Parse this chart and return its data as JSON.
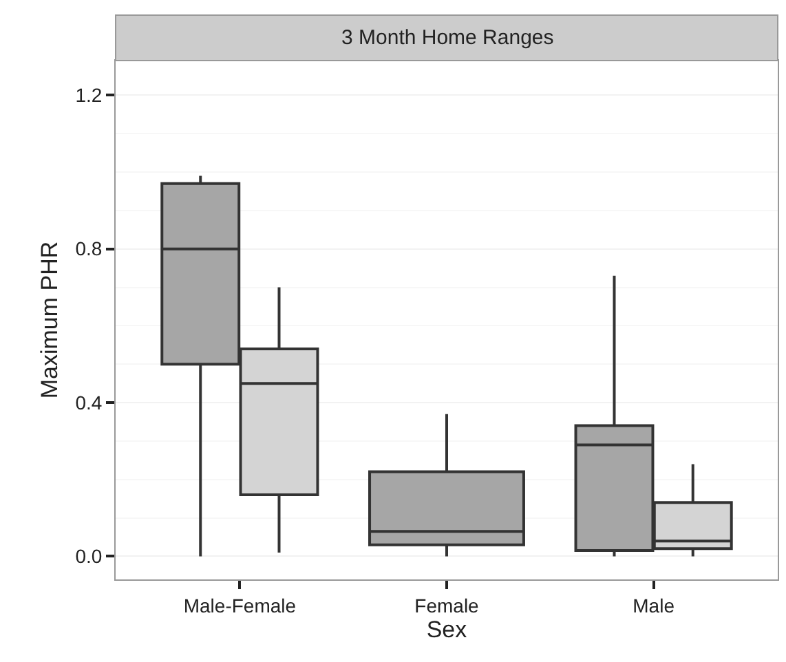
{
  "chart_data": {
    "type": "box",
    "title": "3 Month Home Ranges",
    "xlabel": "Sex",
    "ylabel": "Maximum PHR",
    "categories": [
      "Male-Female",
      "Female",
      "Male"
    ],
    "series": [
      {
        "color": "#a6a6a6",
        "boxes": [
          {
            "low": 0.0,
            "q1": 0.5,
            "median": 0.8,
            "q3": 0.97,
            "high": 0.99
          },
          {
            "low": 0.0,
            "q1": 0.03,
            "median": 0.065,
            "q3": 0.22,
            "high": 0.37
          },
          {
            "low": 0.0,
            "q1": 0.015,
            "median": 0.29,
            "q3": 0.34,
            "high": 0.73
          }
        ]
      },
      {
        "color": "#d4d4d4",
        "boxes": [
          {
            "low": 0.01,
            "q1": 0.16,
            "median": 0.45,
            "q3": 0.54,
            "high": 0.7
          },
          null,
          {
            "low": 0.0,
            "q1": 0.02,
            "median": 0.04,
            "q3": 0.14,
            "high": 0.24
          }
        ]
      }
    ],
    "ylim": [
      -0.06,
      1.29
    ],
    "yticks": [
      {
        "value": 0,
        "label": "0.0"
      },
      0.4,
      0.8,
      1.2
    ],
    "grid": "y"
  }
}
